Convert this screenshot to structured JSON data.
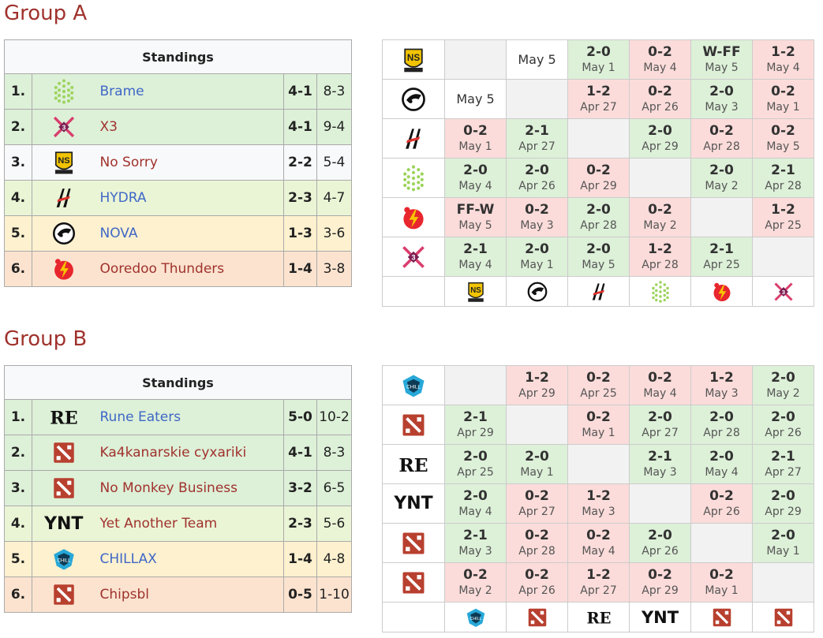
{
  "groups": [
    {
      "title": "Group A",
      "standings_header": "Standings",
      "standings": [
        {
          "rank": "1.",
          "logo": "brame-logo",
          "name": "Brame",
          "series": "4-1",
          "games": "8-3",
          "row_bg": "g",
          "link": "blue"
        },
        {
          "rank": "2.",
          "logo": "x3-logo",
          "name": "X3",
          "series": "4-1",
          "games": "9-4",
          "row_bg": "g",
          "link": "red"
        },
        {
          "rank": "3.",
          "logo": "no-sorry-logo",
          "name": "No Sorry",
          "series": "2-2",
          "games": "5-4",
          "row_bg": "n",
          "link": "red"
        },
        {
          "rank": "4.",
          "logo": "hydra-logo",
          "name": "HYDRA",
          "series": "2-3",
          "games": "4-7",
          "row_bg": "y",
          "link": "blue"
        },
        {
          "rank": "5.",
          "logo": "nova-logo",
          "name": "NOVA",
          "series": "1-3",
          "games": "3-6",
          "row_bg": "o",
          "link": "blue"
        },
        {
          "rank": "6.",
          "logo": "ooredoo-logo",
          "name": "Ooredoo Thunders",
          "series": "1-4",
          "games": "3-8",
          "row_bg": "p",
          "link": "red"
        }
      ],
      "cross_logos": [
        "no-sorry-logo",
        "nova-logo",
        "hydra-logo",
        "brame-logo",
        "ooredoo-logo",
        "x3-logo"
      ],
      "cross": [
        [
          {
            "t": "e"
          },
          {
            "t": "d",
            "date": "May 5"
          },
          {
            "t": "r",
            "s": "2-0",
            "d": "May 1",
            "c": "g"
          },
          {
            "t": "r",
            "s": "0-2",
            "d": "May 4",
            "c": "r"
          },
          {
            "t": "r",
            "s": "W-FF",
            "d": "May 5",
            "c": "g"
          },
          {
            "t": "r",
            "s": "1-2",
            "d": "May 4",
            "c": "r"
          }
        ],
        [
          {
            "t": "d",
            "date": "May 5"
          },
          {
            "t": "e"
          },
          {
            "t": "r",
            "s": "1-2",
            "d": "Apr 27",
            "c": "r"
          },
          {
            "t": "r",
            "s": "0-2",
            "d": "Apr 26",
            "c": "r"
          },
          {
            "t": "r",
            "s": "2-0",
            "d": "May 3",
            "c": "g"
          },
          {
            "t": "r",
            "s": "0-2",
            "d": "May 1",
            "c": "r"
          }
        ],
        [
          {
            "t": "r",
            "s": "0-2",
            "d": "May 1",
            "c": "r"
          },
          {
            "t": "r",
            "s": "2-1",
            "d": "Apr 27",
            "c": "g"
          },
          {
            "t": "e"
          },
          {
            "t": "r",
            "s": "2-0",
            "d": "Apr 29",
            "c": "g"
          },
          {
            "t": "r",
            "s": "0-2",
            "d": "Apr 28",
            "c": "r"
          },
          {
            "t": "r",
            "s": "0-2",
            "d": "May 5",
            "c": "r"
          }
        ],
        [
          {
            "t": "r",
            "s": "2-0",
            "d": "May 4",
            "c": "g"
          },
          {
            "t": "r",
            "s": "2-0",
            "d": "Apr 26",
            "c": "g"
          },
          {
            "t": "r",
            "s": "0-2",
            "d": "Apr 29",
            "c": "r"
          },
          {
            "t": "e"
          },
          {
            "t": "r",
            "s": "2-0",
            "d": "May 2",
            "c": "g"
          },
          {
            "t": "r",
            "s": "2-1",
            "d": "Apr 28",
            "c": "g"
          }
        ],
        [
          {
            "t": "r",
            "s": "FF-W",
            "d": "May 5",
            "c": "r"
          },
          {
            "t": "r",
            "s": "0-2",
            "d": "May 3",
            "c": "r"
          },
          {
            "t": "r",
            "s": "2-0",
            "d": "Apr 28",
            "c": "g"
          },
          {
            "t": "r",
            "s": "0-2",
            "d": "May 2",
            "c": "r"
          },
          {
            "t": "e"
          },
          {
            "t": "r",
            "s": "1-2",
            "d": "Apr 25",
            "c": "r"
          }
        ],
        [
          {
            "t": "r",
            "s": "2-1",
            "d": "May 4",
            "c": "g"
          },
          {
            "t": "r",
            "s": "2-0",
            "d": "May 1",
            "c": "g"
          },
          {
            "t": "r",
            "s": "2-0",
            "d": "May 5",
            "c": "g"
          },
          {
            "t": "r",
            "s": "1-2",
            "d": "Apr 28",
            "c": "r"
          },
          {
            "t": "r",
            "s": "2-1",
            "d": "Apr 25",
            "c": "g"
          },
          {
            "t": "e"
          }
        ]
      ]
    },
    {
      "title": "Group B",
      "standings_header": "Standings",
      "standings": [
        {
          "rank": "1.",
          "logo": "rune-eaters-logo",
          "name": "Rune Eaters",
          "series": "5-0",
          "games": "10-2",
          "row_bg": "g",
          "link": "blue"
        },
        {
          "rank": "2.",
          "logo": "dota-logo",
          "name": "Ka4kanarskie cyxariki",
          "series": "4-1",
          "games": "8-3",
          "row_bg": "g",
          "link": "red"
        },
        {
          "rank": "3.",
          "logo": "dota-logo",
          "name": "No Monkey Business",
          "series": "3-2",
          "games": "6-5",
          "row_bg": "g",
          "link": "red"
        },
        {
          "rank": "4.",
          "logo": "ynt-logo",
          "name": "Yet Another Team",
          "series": "2-3",
          "games": "5-6",
          "row_bg": "y",
          "link": "red"
        },
        {
          "rank": "5.",
          "logo": "chillax-logo",
          "name": "CHILLAX",
          "series": "1-4",
          "games": "4-8",
          "row_bg": "o",
          "link": "blue"
        },
        {
          "rank": "6.",
          "logo": "dota-logo",
          "name": "Chipsbl",
          "series": "0-5",
          "games": "1-10",
          "row_bg": "p",
          "link": "red"
        }
      ],
      "cross_logos": [
        "chillax-logo",
        "dota-logo",
        "rune-eaters-logo",
        "ynt-logo",
        "dota-logo",
        "dota-logo"
      ],
      "cross": [
        [
          {
            "t": "e"
          },
          {
            "t": "r",
            "s": "1-2",
            "d": "Apr 29",
            "c": "r"
          },
          {
            "t": "r",
            "s": "0-2",
            "d": "Apr 25",
            "c": "r"
          },
          {
            "t": "r",
            "s": "0-2",
            "d": "May 4",
            "c": "r"
          },
          {
            "t": "r",
            "s": "1-2",
            "d": "May 3",
            "c": "r"
          },
          {
            "t": "r",
            "s": "2-0",
            "d": "May 2",
            "c": "g"
          }
        ],
        [
          {
            "t": "r",
            "s": "2-1",
            "d": "Apr 29",
            "c": "g"
          },
          {
            "t": "e"
          },
          {
            "t": "r",
            "s": "0-2",
            "d": "May 1",
            "c": "r"
          },
          {
            "t": "r",
            "s": "2-0",
            "d": "Apr 27",
            "c": "g"
          },
          {
            "t": "r",
            "s": "2-0",
            "d": "Apr 28",
            "c": "g"
          },
          {
            "t": "r",
            "s": "2-0",
            "d": "Apr 26",
            "c": "g"
          }
        ],
        [
          {
            "t": "r",
            "s": "2-0",
            "d": "Apr 25",
            "c": "g"
          },
          {
            "t": "r",
            "s": "2-0",
            "d": "May 1",
            "c": "g"
          },
          {
            "t": "e"
          },
          {
            "t": "r",
            "s": "2-1",
            "d": "May 3",
            "c": "g"
          },
          {
            "t": "r",
            "s": "2-0",
            "d": "May 4",
            "c": "g"
          },
          {
            "t": "r",
            "s": "2-1",
            "d": "Apr 27",
            "c": "g"
          }
        ],
        [
          {
            "t": "r",
            "s": "2-0",
            "d": "May 4",
            "c": "g"
          },
          {
            "t": "r",
            "s": "0-2",
            "d": "Apr 27",
            "c": "r"
          },
          {
            "t": "r",
            "s": "1-2",
            "d": "May 3",
            "c": "r"
          },
          {
            "t": "e"
          },
          {
            "t": "r",
            "s": "0-2",
            "d": "Apr 26",
            "c": "r"
          },
          {
            "t": "r",
            "s": "2-0",
            "d": "Apr 29",
            "c": "g"
          }
        ],
        [
          {
            "t": "r",
            "s": "2-1",
            "d": "May 3",
            "c": "g"
          },
          {
            "t": "r",
            "s": "0-2",
            "d": "Apr 28",
            "c": "r"
          },
          {
            "t": "r",
            "s": "0-2",
            "d": "May 4",
            "c": "r"
          },
          {
            "t": "r",
            "s": "2-0",
            "d": "Apr 26",
            "c": "g"
          },
          {
            "t": "e"
          },
          {
            "t": "r",
            "s": "2-0",
            "d": "May 1",
            "c": "g"
          }
        ],
        [
          {
            "t": "r",
            "s": "0-2",
            "d": "May 2",
            "c": "r"
          },
          {
            "t": "r",
            "s": "0-2",
            "d": "Apr 26",
            "c": "r"
          },
          {
            "t": "r",
            "s": "1-2",
            "d": "Apr 27",
            "c": "r"
          },
          {
            "t": "r",
            "s": "0-2",
            "d": "Apr 29",
            "c": "r"
          },
          {
            "t": "r",
            "s": "0-2",
            "d": "May 1",
            "c": "r"
          },
          {
            "t": "e"
          }
        ]
      ]
    }
  ],
  "logo_text": {
    "ynt-logo": "YNT"
  },
  "colors": {
    "title": "#a0322d",
    "link_blue": "#3f67c6",
    "link_red": "#a0322d",
    "win": "#ddf0d8",
    "loss": "#fbdcda"
  }
}
